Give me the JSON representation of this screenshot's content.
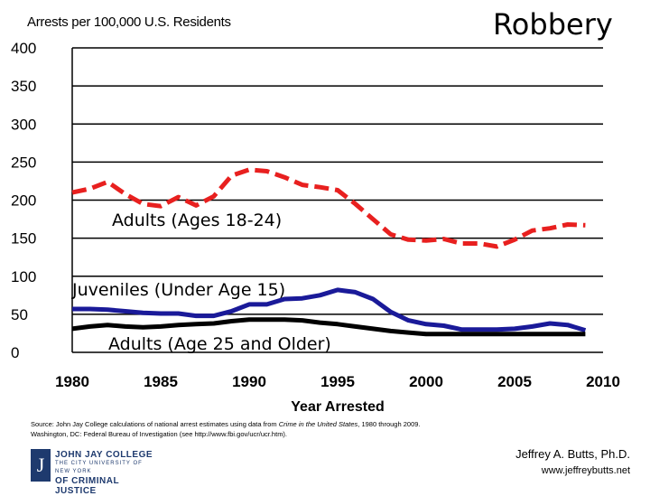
{
  "chart_data": {
    "type": "line",
    "title": "Robbery",
    "ylabel": "Arrests per 100,000 U.S. Residents",
    "xlabel": "Year Arrested",
    "xlim": [
      1980,
      2010
    ],
    "ylim": [
      0,
      400
    ],
    "xticks": [
      1980,
      1985,
      1990,
      1995,
      2000,
      2005,
      2010
    ],
    "yticks": [
      0,
      50,
      100,
      150,
      200,
      250,
      300,
      350,
      400
    ],
    "grid": true,
    "x": [
      1980,
      1981,
      1982,
      1983,
      1984,
      1985,
      1986,
      1987,
      1988,
      1989,
      1990,
      1991,
      1992,
      1993,
      1994,
      1995,
      1996,
      1997,
      1998,
      1999,
      2000,
      2001,
      2002,
      2003,
      2004,
      2005,
      2006,
      2007,
      2008,
      2009
    ],
    "series": [
      {
        "name": "Adults (Ages 18-24)",
        "color": "#e8201f",
        "style": "dashed",
        "values": [
          210,
          215,
          224,
          208,
          195,
          192,
          204,
          193,
          205,
          232,
          240,
          238,
          230,
          220,
          217,
          213,
          195,
          175,
          155,
          148,
          147,
          149,
          143,
          143,
          139,
          148,
          160,
          163,
          168,
          167
        ]
      },
      {
        "name": "Juveniles (Under Age 15)",
        "color": "#1a1a99",
        "style": "solid",
        "values": [
          57,
          57,
          56,
          54,
          52,
          51,
          51,
          48,
          48,
          54,
          63,
          63,
          70,
          71,
          75,
          82,
          79,
          70,
          53,
          42,
          37,
          35,
          30,
          30,
          30,
          31,
          34,
          38,
          36,
          29
        ]
      },
      {
        "name": "Adults (Age 25 and Older)",
        "color": "#000000",
        "style": "solid",
        "values": [
          31,
          34,
          36,
          34,
          33,
          34,
          36,
          37,
          38,
          41,
          43,
          43,
          43,
          42,
          39,
          37,
          34,
          31,
          28,
          26,
          24,
          24,
          24,
          24,
          24,
          24,
          24,
          24,
          24,
          24
        ]
      }
    ],
    "annotations": [
      {
        "text": "Adults (Ages 18-24)",
        "series": 0
      },
      {
        "text": "Juveniles (Under Age 15)",
        "series": 1
      },
      {
        "text": "Adults (Age 25 and Older)",
        "series": 2
      }
    ]
  },
  "source_line1_prefix": "Source: John Jay College calculations of national arrest estimates using data from ",
  "source_line1_italic": "Crime in the United States",
  "source_line1_suffix": ", 1980 through 2009.",
  "source_line2": "Washington, DC: Federal Bureau of Investigation (see http://www.fbi.gov/ucr/ucr.htm).",
  "logo": {
    "seal_letter": "J",
    "line1": "JOHN JAY COLLEGE",
    "line2": "THE CITY UNIVERSITY OF NEW YORK",
    "line3": "OF CRIMINAL JUSTICE"
  },
  "author": {
    "name": "Jeffrey A. Butts, Ph.D.",
    "website": "www.jeffreybutts.net"
  }
}
